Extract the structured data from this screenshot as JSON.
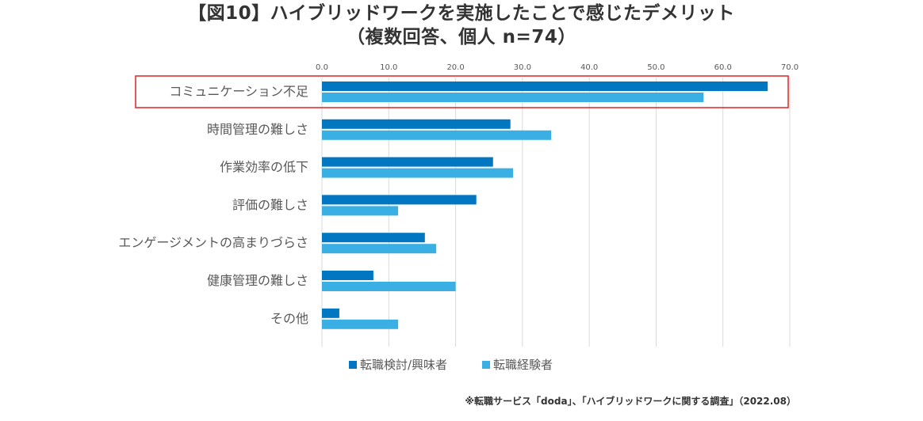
{
  "title": {
    "line1": "【図10】ハイブリッドワークを実施したことで感じたデメリット",
    "line2": "（複数回答、個人 n=74）"
  },
  "source": "※転職サービス「doda」、「ハイブリッドワークに関する調査」（2022.08）",
  "colors": {
    "series1": "#0077C0",
    "series2": "#3AAFE3",
    "highlight": "#E02424",
    "grid": "#D9D9D9"
  },
  "chart_data": {
    "type": "bar",
    "orientation": "horizontal",
    "categories": [
      "コミュニケーション不足",
      "時間管理の難しさ",
      "作業効率の低下",
      "評価の難しさ",
      "エンゲージメントの高まりづらさ",
      "健康管理の難しさ",
      "その他"
    ],
    "series": [
      {
        "name": "転職検討/興味者",
        "values": [
          66.7,
          28.2,
          25.6,
          23.1,
          15.4,
          7.7,
          2.6
        ]
      },
      {
        "name": "転職経験者",
        "values": [
          57.1,
          34.3,
          28.6,
          11.4,
          17.1,
          20.0,
          11.4
        ]
      }
    ],
    "xlim": [
      0,
      70
    ],
    "ticks": [
      "0.0",
      "10.0",
      "20.0",
      "30.0",
      "40.0",
      "50.0",
      "60.0",
      "70.0"
    ],
    "grid": true,
    "legend_position": "bottom",
    "highlighted_category": "コミュニケーション不足"
  }
}
